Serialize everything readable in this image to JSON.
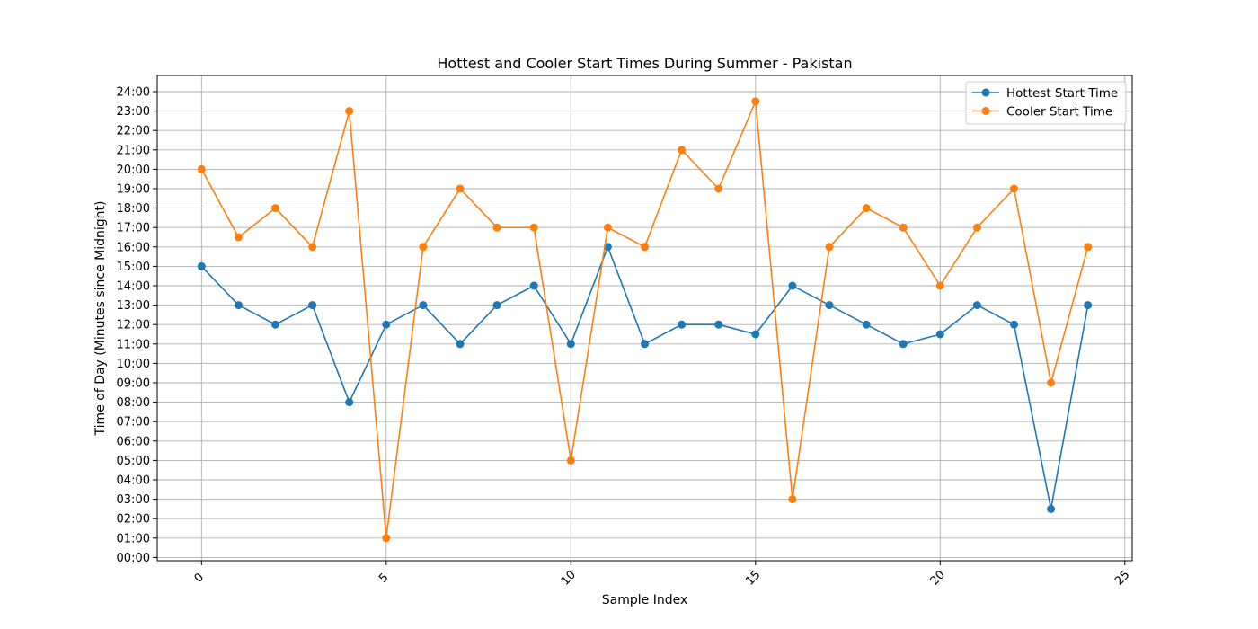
{
  "chart_data": {
    "type": "line",
    "title": "Hottest and Cooler Start Times During Summer - Pakistan",
    "xlabel": "Sample Index",
    "ylabel": "Time of Day (Minutes since Midnight)",
    "xlim": [
      -1.2,
      25.2
    ],
    "ylim": [
      -10,
      1490
    ],
    "grid": true,
    "legend_position": "top-right",
    "x_ticks": [
      0,
      5,
      10,
      15,
      20,
      25
    ],
    "x_tick_labels": [
      "0",
      "5",
      "10",
      "15",
      "20",
      "25"
    ],
    "y_ticks": [
      0,
      60,
      120,
      180,
      240,
      300,
      360,
      420,
      480,
      540,
      600,
      660,
      720,
      780,
      840,
      900,
      960,
      1020,
      1080,
      1140,
      1200,
      1260,
      1320,
      1380,
      1440
    ],
    "y_tick_labels": [
      "00:00",
      "01:00",
      "02:00",
      "03:00",
      "04:00",
      "05:00",
      "06:00",
      "07:00",
      "08:00",
      "09:00",
      "10:00",
      "11:00",
      "12:00",
      "13:00",
      "14:00",
      "15:00",
      "16:00",
      "17:00",
      "18:00",
      "19:00",
      "20:00",
      "21:00",
      "22:00",
      "23:00",
      "24:00"
    ],
    "x": [
      0,
      1,
      2,
      3,
      4,
      5,
      6,
      7,
      8,
      9,
      10,
      11,
      12,
      13,
      14,
      15,
      16,
      17,
      18,
      19,
      20,
      21,
      22,
      23,
      24
    ],
    "series": [
      {
        "name": "Hottest Start Time",
        "color": "#1f77b4",
        "values": [
          900,
          780,
          720,
          780,
          480,
          720,
          780,
          660,
          780,
          840,
          660,
          960,
          660,
          720,
          720,
          690,
          840,
          780,
          720,
          660,
          690,
          780,
          720,
          150,
          780
        ]
      },
      {
        "name": "Cooler Start Time",
        "color": "#ff7f0e",
        "values": [
          1200,
          990,
          1080,
          960,
          1380,
          60,
          960,
          1140,
          1020,
          1020,
          300,
          1020,
          960,
          1260,
          1140,
          1410,
          180,
          960,
          1080,
          1020,
          840,
          1020,
          1140,
          540,
          960
        ]
      }
    ]
  }
}
